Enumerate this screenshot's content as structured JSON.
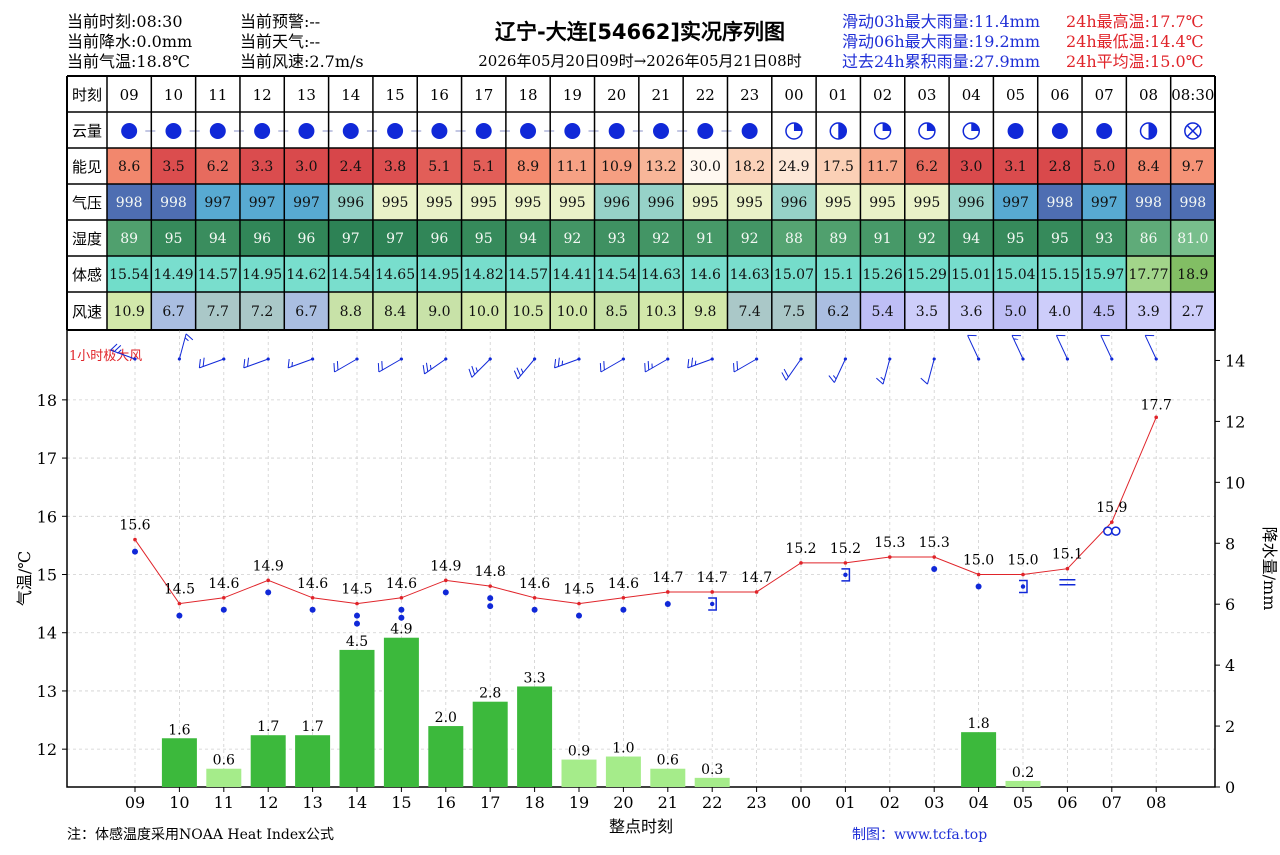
{
  "header": {
    "left": [
      [
        "当前时刻:08:30",
        "当前降水:0.0mm",
        "当前气温:18.8℃"
      ],
      [
        "当前预警:--",
        "当前天气:--",
        "当前风速:2.7m/s"
      ]
    ],
    "title": "辽宁-大连[54662]实况序列图",
    "subtitle": "2026年05月20日09时→2026年05月21日08时",
    "rain_stats": [
      "滑动03h最大雨量:11.4mm",
      "滑动06h最大雨量:19.2mm",
      "过去24h累积雨量:27.9mm"
    ],
    "temp_stats": [
      "24h最高温:17.7℃",
      "24h最低温:14.4℃",
      "24h平均温:15.0℃"
    ]
  },
  "table": {
    "row_labels": [
      "时刻",
      "云量",
      "能见",
      "气压",
      "湿度",
      "体感",
      "风速"
    ],
    "hours": [
      "09",
      "10",
      "11",
      "12",
      "13",
      "14",
      "15",
      "16",
      "17",
      "18",
      "19",
      "20",
      "21",
      "22",
      "23",
      "00",
      "01",
      "02",
      "03",
      "04",
      "05",
      "06",
      "07",
      "08",
      "08:30"
    ],
    "cloud": [
      "full",
      "full",
      "full",
      "full",
      "full",
      "full",
      "full",
      "full",
      "full",
      "full",
      "full",
      "full",
      "full",
      "full",
      "full",
      "quarter",
      "half",
      "quarter",
      "quarter",
      "quarter",
      "full",
      "full",
      "full",
      "half",
      "obscured"
    ],
    "visibility": [
      "8.6",
      "3.5",
      "6.2",
      "3.3",
      "3.0",
      "2.4",
      "3.8",
      "5.1",
      "5.1",
      "8.9",
      "11.1",
      "10.9",
      "13.2",
      "30.0",
      "18.2",
      "24.9",
      "17.5",
      "11.7",
      "6.2",
      "3.0",
      "3.1",
      "2.8",
      "5.0",
      "8.4",
      "9.7"
    ],
    "pressure": [
      "998",
      "998",
      "997",
      "997",
      "997",
      "996",
      "995",
      "995",
      "995",
      "995",
      "995",
      "996",
      "996",
      "995",
      "995",
      "996",
      "995",
      "995",
      "995",
      "996",
      "997",
      "998",
      "997",
      "998",
      "998"
    ],
    "humidity": [
      "89",
      "95",
      "94",
      "96",
      "96",
      "97",
      "97",
      "96",
      "95",
      "94",
      "92",
      "93",
      "92",
      "91",
      "92",
      "88",
      "89",
      "91",
      "92",
      "94",
      "95",
      "95",
      "93",
      "86",
      "81.0"
    ],
    "feels_like": [
      "15.54",
      "14.49",
      "14.57",
      "14.95",
      "14.62",
      "14.54",
      "14.65",
      "14.95",
      "14.82",
      "14.57",
      "14.41",
      "14.54",
      "14.63",
      "14.6",
      "14.63",
      "15.07",
      "15.1",
      "15.26",
      "15.29",
      "15.01",
      "15.04",
      "15.15",
      "15.97",
      "17.77",
      "18.9"
    ],
    "wind_speed": [
      "10.9",
      "6.7",
      "7.7",
      "7.2",
      "6.7",
      "8.8",
      "8.4",
      "9.0",
      "10.0",
      "10.5",
      "10.0",
      "8.5",
      "10.3",
      "9.8",
      "7.4",
      "7.5",
      "6.2",
      "5.4",
      "3.5",
      "3.6",
      "5.0",
      "4.0",
      "4.5",
      "3.9",
      "2.7"
    ]
  },
  "chart_data": {
    "type": "line",
    "x": [
      "09",
      "10",
      "11",
      "12",
      "13",
      "14",
      "15",
      "16",
      "17",
      "18",
      "19",
      "20",
      "21",
      "22",
      "23",
      "00",
      "01",
      "02",
      "03",
      "04",
      "05",
      "06",
      "07",
      "08"
    ],
    "xlabel": "整点时刻",
    "ylabel": "气温/℃",
    "y2label": "降水量/mm",
    "ylim": [
      11.35,
      19.2
    ],
    "y2lim": [
      0,
      15
    ],
    "yticks": [
      12,
      13,
      14,
      15,
      16,
      17,
      18
    ],
    "y2ticks": [
      0,
      2,
      4,
      6,
      8,
      10,
      12,
      14
    ],
    "grid": true,
    "wind_label": "1小时极大风",
    "series": [
      {
        "kind": "line",
        "color": "#e0242a",
        "values": [
          15.6,
          14.5,
          14.6,
          14.9,
          14.6,
          14.5,
          14.6,
          14.9,
          14.8,
          14.6,
          14.5,
          14.6,
          14.7,
          14.7,
          14.7,
          15.2,
          15.2,
          15.3,
          15.3,
          15.0,
          15.0,
          15.1,
          15.9,
          17.7
        ],
        "labels": [
          "15.6",
          "14.5",
          "14.6",
          "14.9",
          "14.6",
          "14.5",
          "14.6",
          "14.9",
          "14.8",
          "14.6",
          "14.5",
          "14.6",
          "14.7",
          "14.7",
          "14.7",
          "15.2",
          "15.2",
          "15.3",
          "15.3",
          "15.0",
          "15.0",
          "15.1",
          "15.9",
          "17.7"
        ]
      },
      {
        "kind": "bar",
        "axis": "right",
        "values": [
          0,
          1.6,
          0.6,
          1.7,
          1.7,
          4.5,
          4.9,
          2.0,
          2.8,
          3.3,
          0.9,
          1.0,
          0.6,
          0.3,
          0,
          0,
          0,
          0,
          0,
          1.8,
          0.2,
          0,
          0,
          0
        ],
        "labels": [
          "",
          "1.6",
          "0.6",
          "1.7",
          "1.7",
          "4.5",
          "4.9",
          "2.0",
          "2.8",
          "3.3",
          "0.9",
          "1.0",
          "0.6",
          "0.3",
          "",
          "",
          "",
          "",
          "",
          "1.8",
          "0.2",
          "",
          "",
          ""
        ]
      }
    ],
    "weather_symbols": [
      "dot",
      "dot",
      "dot",
      "dot",
      "dot",
      "dot2",
      "dot2",
      "dot",
      "dot2",
      "dot",
      "dot",
      "dot",
      "dot",
      "bracket",
      "",
      "",
      "bracket",
      "",
      "dot",
      "dot",
      "bracket",
      "eq",
      "inf",
      ""
    ],
    "wind_dirs": [
      290,
      15,
      250,
      250,
      250,
      240,
      240,
      235,
      225,
      220,
      250,
      240,
      240,
      250,
      240,
      215,
      205,
      195,
      195,
      335,
      335,
      335,
      335,
      335
    ]
  },
  "footer": {
    "note": "注：体感温度采用NOAA Heat Index公式",
    "credit": "制图：www.tcfa.top"
  }
}
